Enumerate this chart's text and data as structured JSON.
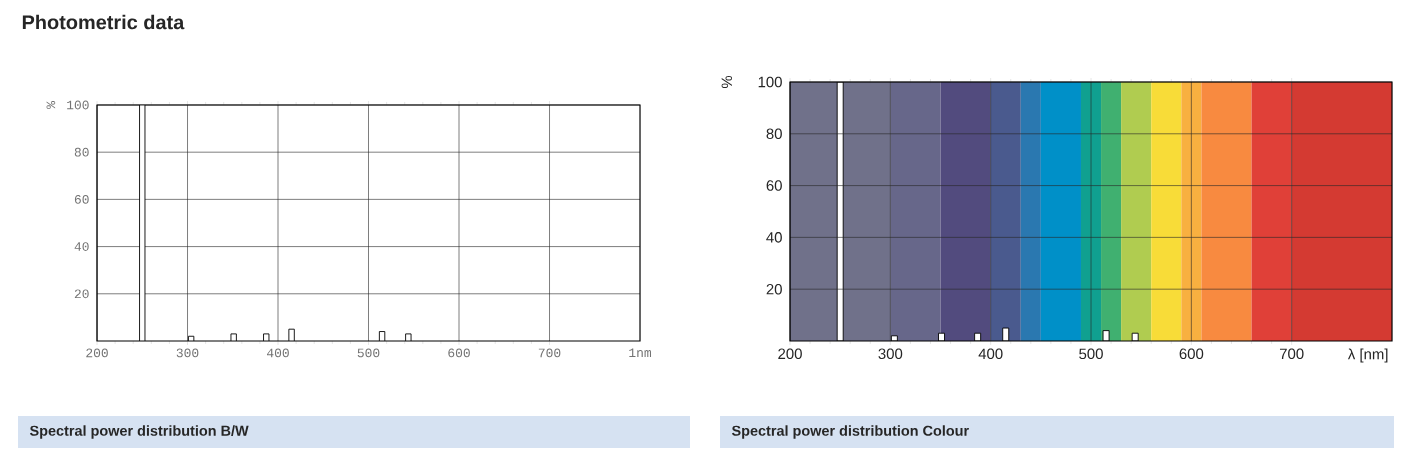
{
  "chart_data": [
    {
      "type": "bar",
      "title": "Photometric data",
      "ylabel": "%",
      "color": "#ffffff",
      "x": [
        250,
        304,
        351,
        387,
        415,
        515,
        544
      ],
      "values": [
        100,
        2,
        3,
        3,
        5,
        4,
        3
      ],
      "xlim": [
        200,
        800
      ],
      "ylim": [
        0,
        100
      ],
      "xlabel": "1nm",
      "xticks": [
        200,
        300,
        400,
        500,
        600,
        700
      ],
      "yticks": [
        20,
        40,
        60,
        80,
        100
      ],
      "grid": true,
      "annotations": [
        "Spectral power distribution B/W"
      ]
    },
    {
      "type": "bar",
      "ylabel": "%",
      "xlabel": "λ [nm]",
      "color": "#ffffff",
      "x": [
        250,
        304,
        351,
        387,
        415,
        515,
        544
      ],
      "values": [
        100,
        2,
        3,
        3,
        5,
        4,
        3
      ],
      "xlim": [
        200,
        800
      ],
      "ylim": [
        0,
        100
      ],
      "xticks": [
        200,
        300,
        400,
        500,
        600,
        700
      ],
      "yticks": [
        20,
        40,
        60,
        80,
        100
      ],
      "grid": true,
      "bands": [
        {
          "axis": "x",
          "from": 200,
          "to": 300,
          "color": "#70718a"
        },
        {
          "axis": "x",
          "from": 300,
          "to": 350,
          "color": "#67678a"
        },
        {
          "axis": "x",
          "from": 350,
          "to": 400,
          "color": "#524b7e"
        },
        {
          "axis": "x",
          "from": 400,
          "to": 430,
          "color": "#4a5a8e"
        },
        {
          "axis": "x",
          "from": 430,
          "to": 450,
          "color": "#2a78b0"
        },
        {
          "axis": "x",
          "from": 450,
          "to": 490,
          "color": "#0090c8"
        },
        {
          "axis": "x",
          "from": 490,
          "to": 510,
          "color": "#10a090"
        },
        {
          "axis": "x",
          "from": 510,
          "to": 530,
          "color": "#40b070"
        },
        {
          "axis": "x",
          "from": 530,
          "to": 560,
          "color": "#b0cc50"
        },
        {
          "axis": "x",
          "from": 560,
          "to": 590,
          "color": "#f8dc38"
        },
        {
          "axis": "x",
          "from": 590,
          "to": 610,
          "color": "#f8b040"
        },
        {
          "axis": "x",
          "from": 610,
          "to": 660,
          "color": "#f88a40"
        },
        {
          "axis": "x",
          "from": 660,
          "to": 700,
          "color": "#e04038"
        },
        {
          "axis": "x",
          "from": 700,
          "to": 800,
          "color": "#d43a32"
        }
      ],
      "annotations": [
        "Spectral power distribution Colour"
      ]
    }
  ]
}
